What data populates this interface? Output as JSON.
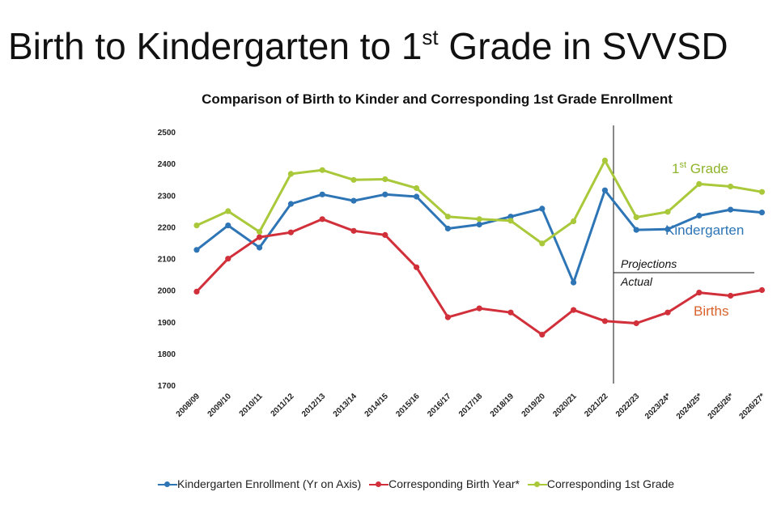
{
  "slide": {
    "title_main": "Birth to Kindergarten to 1",
    "title_sup": "st",
    "title_rest": " Grade in SVVSD"
  },
  "chart_data": {
    "type": "line",
    "title": "Comparison of Birth to Kinder and Corresponding 1st Grade Enrollment",
    "categories": [
      "2008/09",
      "2009/10",
      "2010/11",
      "2011/12",
      "2012/13",
      "2013/14",
      "2014/15",
      "2015/16",
      "2016/17",
      "2017/18",
      "2018/19",
      "2019/20",
      "2020/21",
      "2021/22",
      "2022/23",
      "2023/24*",
      "2024/25*",
      "2025/26*",
      "2026/27*"
    ],
    "ylim": [
      1700,
      2500
    ],
    "yticks": [
      1700,
      1800,
      1900,
      2000,
      2100,
      2200,
      2300,
      2400,
      2500
    ],
    "series": [
      {
        "name": "Kindergarten Enrollment (Yr on Axis)",
        "color": "#2e75b6",
        "values": [
          2130,
          2207,
          2137,
          2275,
          2305,
          2285,
          2305,
          2298,
          2197,
          2210,
          2235,
          2260,
          2027,
          2318,
          2193,
          2195,
          2238,
          2257,
          2248
        ]
      },
      {
        "name": "Corresponding Birth Year*",
        "color": "#d1303a",
        "values": [
          1998,
          2102,
          2170,
          2185,
          2227,
          2190,
          2177,
          2075,
          1917,
          1945,
          1932,
          1862,
          1940,
          1905,
          1898,
          1932,
          1995,
          1985,
          2003
        ]
      },
      {
        "name": "Corresponding 1st Grade",
        "color": "#a9c83a",
        "values": [
          2207,
          2252,
          2187,
          2370,
          2382,
          2351,
          2353,
          2325,
          2235,
          2227,
          2222,
          2150,
          2220,
          2412,
          2233,
          2250,
          2338,
          2330,
          2313
        ]
      }
    ],
    "annotations": {
      "first_grade_main": "1",
      "first_grade_sup": "st",
      "first_grade_rest": " Grade",
      "kindergarten": "Kindergarten",
      "births": "Births",
      "projections": "Projections",
      "actual": "Actual"
    },
    "annotation_colors": {
      "first_grade": "#8fb32a",
      "kindergarten": "#2e75b6",
      "births": "#d9622b"
    },
    "grid": false,
    "legend_position": "bottom"
  }
}
